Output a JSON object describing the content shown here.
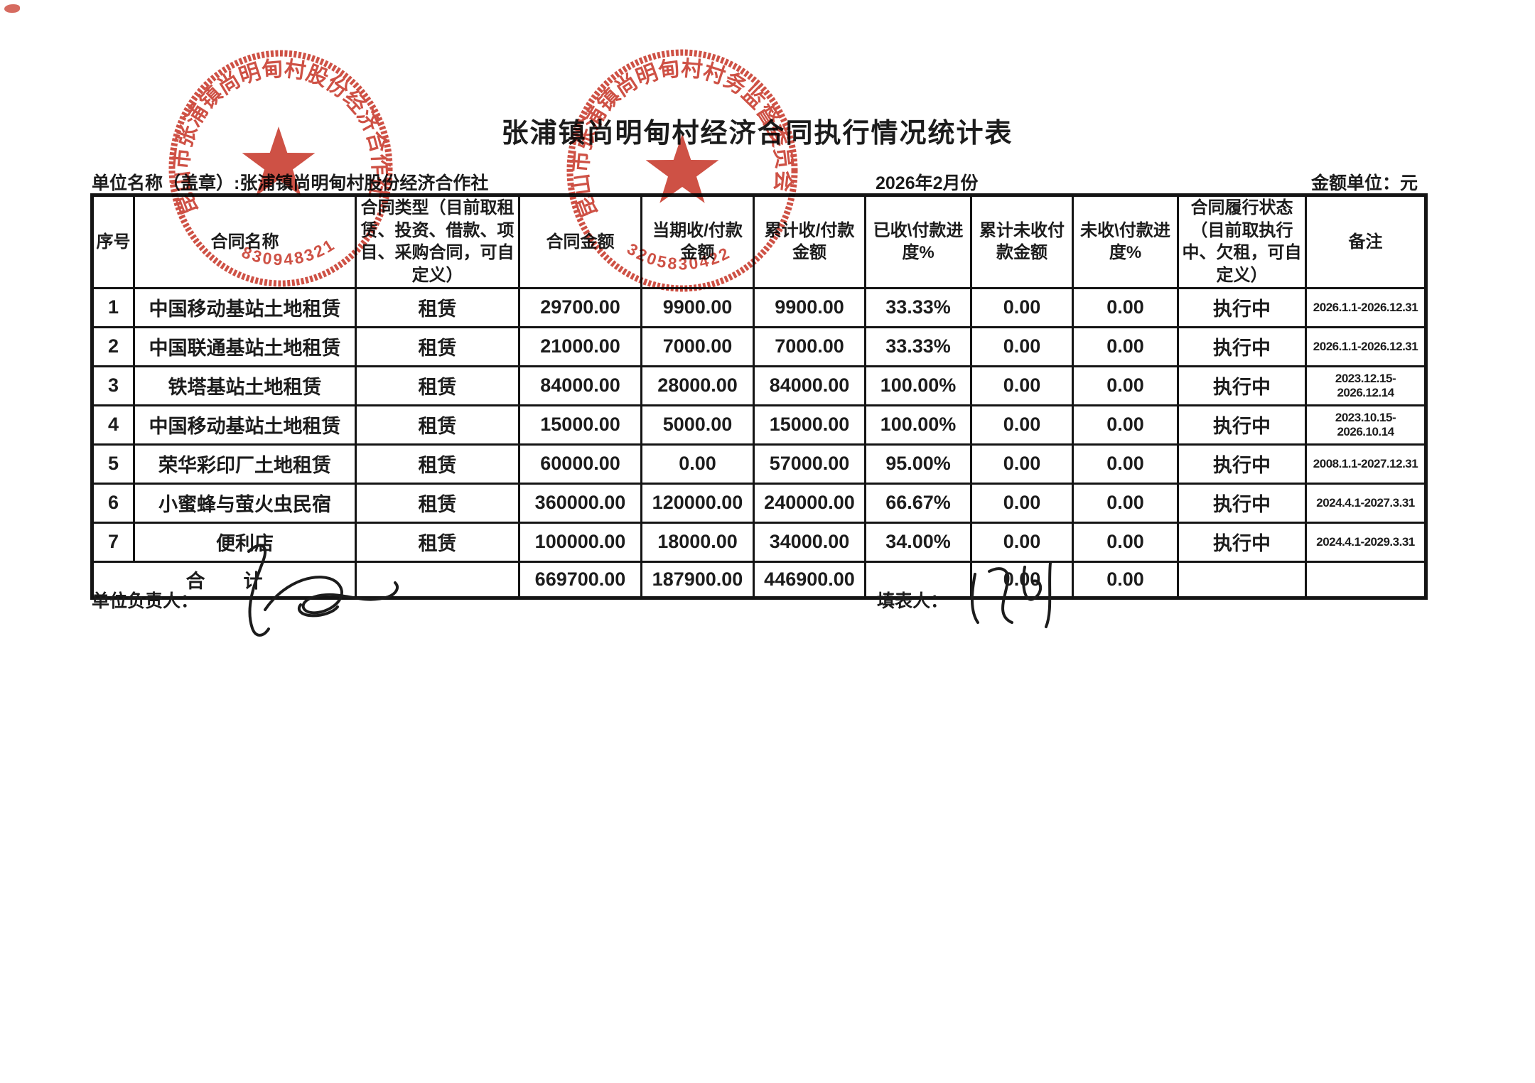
{
  "page": {
    "title": "张浦镇尚明甸村经济合同执行情况统计表",
    "unit_label": "单位名称（盖章）:张浦镇尚明甸村股份经济合作社",
    "period": "2026年2月份",
    "amount_unit": "金额单位：元"
  },
  "table": {
    "headers": [
      "序号",
      "合同名称",
      "合同类型（目前取租赁、投资、借款、项目、采购合同，可自定义）",
      "合同金额",
      "当期收/付款金额",
      "累计收/付款金额",
      "已收\\付款进度%",
      "累计未收付款金额",
      "未收\\付款进度%",
      "合同履行状态（目前取执行中、欠租，可自定义）",
      "备注"
    ],
    "rows": [
      [
        "1",
        "中国移动基站土地租赁",
        "租赁",
        "29700.00",
        "9900.00",
        "9900.00",
        "33.33%",
        "0.00",
        "0.00",
        "执行中",
        "2026.1.1-2026.12.31"
      ],
      [
        "2",
        "中国联通基站土地租赁",
        "租赁",
        "21000.00",
        "7000.00",
        "7000.00",
        "33.33%",
        "0.00",
        "0.00",
        "执行中",
        "2026.1.1-2026.12.31"
      ],
      [
        "3",
        "铁塔基站土地租赁",
        "租赁",
        "84000.00",
        "28000.00",
        "84000.00",
        "100.00%",
        "0.00",
        "0.00",
        "执行中",
        "2023.12.15-2026.12.14"
      ],
      [
        "4",
        "中国移动基站土地租赁",
        "租赁",
        "15000.00",
        "5000.00",
        "15000.00",
        "100.00%",
        "0.00",
        "0.00",
        "执行中",
        "2023.10.15-2026.10.14"
      ],
      [
        "5",
        "荣华彩印厂土地租赁",
        "租赁",
        "60000.00",
        "0.00",
        "57000.00",
        "95.00%",
        "0.00",
        "0.00",
        "执行中",
        "2008.1.1-2027.12.31"
      ],
      [
        "6",
        "小蜜蜂与萤火虫民宿",
        "租赁",
        "360000.00",
        "120000.00",
        "240000.00",
        "66.67%",
        "0.00",
        "0.00",
        "执行中",
        "2024.4.1-2027.3.31"
      ],
      [
        "7",
        "便利店",
        "租赁",
        "100000.00",
        "18000.00",
        "34000.00",
        "34.00%",
        "0.00",
        "0.00",
        "执行中",
        "2024.4.1-2029.3.31"
      ]
    ],
    "total_row": [
      "合　　计",
      "",
      "669700.00",
      "187900.00",
      "446900.00",
      "",
      "0.00",
      "0.00",
      "",
      ""
    ]
  },
  "signatures": {
    "left_label": "单位负责人：",
    "right_label": "填表人："
  },
  "stamps": [
    {
      "ring_text": "昆山市张浦镇尚明甸村股份经济合作社",
      "serial": "830948321"
    },
    {
      "ring_text": "昆山市张浦镇尚明甸村村务监督委员会",
      "serial": "3205830422"
    }
  ],
  "colors": {
    "stamp_red": "#c8392b",
    "ink": "#1c1c1c"
  }
}
